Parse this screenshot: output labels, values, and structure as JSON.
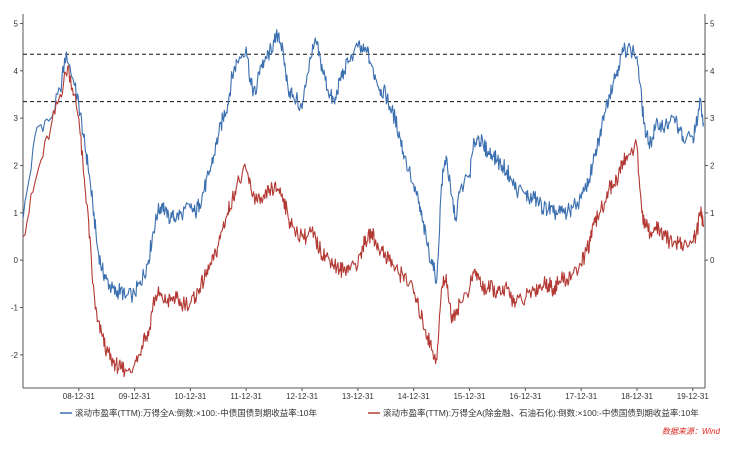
{
  "chart_data": {
    "type": "line",
    "title": "",
    "xlabel": "",
    "ylabel": "",
    "x_tick_labels": [
      "08-12-31",
      "09-12-31",
      "10-12-31",
      "11-12-31",
      "12-12-31",
      "13-12-31",
      "14-12-31",
      "15-12-31",
      "16-12-31",
      "17-12-31",
      "18-12-31",
      "19-12-31"
    ],
    "ylim": [
      -2.7,
      5.2
    ],
    "y_ticks": [
      -2,
      -1,
      0,
      1,
      2,
      3,
      4,
      5
    ],
    "y_ticks_right": [
      0,
      1,
      2,
      3,
      4,
      5
    ],
    "grid": false,
    "legend_position": "bottom",
    "reference_lines": [
      4.35,
      3.35
    ],
    "series": [
      {
        "name": "滚动市盈率(TTM):万得全A:倒数:×100:-中债国债到期收益率:10年",
        "color": "#3b6fb0",
        "points": [
          [
            "2008-01-02",
            0.9
          ],
          [
            "2008-04-01",
            2.8
          ],
          [
            "2008-07-01",
            3.0
          ],
          [
            "2008-09-01",
            3.6
          ],
          [
            "2008-10-10",
            4.4
          ],
          [
            "2008-12-01",
            3.7
          ],
          [
            "2008-12-31",
            3.3
          ],
          [
            "2009-02-01",
            2.6
          ],
          [
            "2009-03-01",
            2.0
          ],
          [
            "2009-04-01",
            1.2
          ],
          [
            "2009-05-01",
            0.3
          ],
          [
            "2009-06-01",
            -0.2
          ],
          [
            "2009-07-01",
            -0.4
          ],
          [
            "2009-08-01",
            -0.6
          ],
          [
            "2009-09-01",
            -0.7
          ],
          [
            "2009-10-01",
            -0.6
          ],
          [
            "2009-11-01",
            -0.8
          ],
          [
            "2009-12-31",
            -0.7
          ],
          [
            "2010-02-01",
            -0.5
          ],
          [
            "2010-03-01",
            -0.3
          ],
          [
            "2010-04-01",
            0.0
          ],
          [
            "2010-05-01",
            0.6
          ],
          [
            "2010-06-01",
            1.0
          ],
          [
            "2010-07-01",
            1.2
          ],
          [
            "2010-08-01",
            0.9
          ],
          [
            "2010-09-01",
            0.9
          ],
          [
            "2010-10-01",
            0.9
          ],
          [
            "2010-11-01",
            1.0
          ],
          [
            "2010-12-31",
            1.1
          ],
          [
            "2011-02-01",
            1.0
          ],
          [
            "2011-03-01",
            1.2
          ],
          [
            "2011-04-01",
            1.5
          ],
          [
            "2011-05-01",
            1.8
          ],
          [
            "2011-06-01",
            2.2
          ],
          [
            "2011-07-01",
            2.6
          ],
          [
            "2011-08-01",
            3.0
          ],
          [
            "2011-09-01",
            3.3
          ],
          [
            "2011-10-01",
            3.9
          ],
          [
            "2011-11-01",
            4.2
          ],
          [
            "2011-12-31",
            4.5
          ],
          [
            "2012-02-01",
            3.7
          ],
          [
            "2012-03-01",
            3.5
          ],
          [
            "2012-04-01",
            4.1
          ],
          [
            "2012-05-01",
            4.2
          ],
          [
            "2012-06-01",
            4.4
          ],
          [
            "2012-07-01",
            4.6
          ],
          [
            "2012-08-01",
            4.8
          ],
          [
            "2012-09-01",
            4.3
          ],
          [
            "2012-10-01",
            3.6
          ],
          [
            "2012-11-01",
            3.5
          ],
          [
            "2012-12-31",
            3.2
          ],
          [
            "2013-02-01",
            3.9
          ],
          [
            "2013-03-01",
            4.3
          ],
          [
            "2013-04-01",
            4.6
          ],
          [
            "2013-05-01",
            4.2
          ],
          [
            "2013-06-01",
            3.8
          ],
          [
            "2013-07-01",
            3.5
          ],
          [
            "2013-08-01",
            3.3
          ],
          [
            "2013-09-01",
            3.8
          ],
          [
            "2013-10-01",
            4.0
          ],
          [
            "2013-11-01",
            4.2
          ],
          [
            "2013-12-31",
            4.5
          ],
          [
            "2014-02-01",
            4.4
          ],
          [
            "2014-03-01",
            4.4
          ],
          [
            "2014-04-01",
            4.1
          ],
          [
            "2014-05-01",
            3.8
          ],
          [
            "2014-06-01",
            3.6
          ],
          [
            "2014-07-01",
            3.5
          ],
          [
            "2014-08-01",
            3.2
          ],
          [
            "2014-09-01",
            3.0
          ],
          [
            "2014-10-01",
            2.6
          ],
          [
            "2014-11-01",
            2.2
          ],
          [
            "2014-12-31",
            1.6
          ],
          [
            "2015-02-01",
            1.2
          ],
          [
            "2015-03-01",
            0.8
          ],
          [
            "2015-04-01",
            0.3
          ],
          [
            "2015-05-01",
            -0.1
          ],
          [
            "2015-06-01",
            -0.4
          ],
          [
            "2015-07-01",
            1.6
          ],
          [
            "2015-08-01",
            2.2
          ],
          [
            "2015-09-01",
            1.4
          ],
          [
            "2015-10-01",
            0.9
          ],
          [
            "2015-11-01",
            1.5
          ],
          [
            "2015-12-31",
            1.8
          ],
          [
            "2016-02-01",
            2.5
          ],
          [
            "2016-03-01",
            2.6
          ],
          [
            "2016-04-01",
            2.4
          ],
          [
            "2016-05-01",
            2.3
          ],
          [
            "2016-06-01",
            2.2
          ],
          [
            "2016-07-01",
            2.1
          ],
          [
            "2016-08-01",
            2.0
          ],
          [
            "2016-09-01",
            1.9
          ],
          [
            "2016-10-01",
            1.7
          ],
          [
            "2016-11-01",
            1.5
          ],
          [
            "2016-12-31",
            1.4
          ],
          [
            "2017-02-01",
            1.3
          ],
          [
            "2017-03-01",
            1.3
          ],
          [
            "2017-04-01",
            1.2
          ],
          [
            "2017-05-01",
            1.1
          ],
          [
            "2017-06-01",
            1.1
          ],
          [
            "2017-07-01",
            1.0
          ],
          [
            "2017-08-01",
            1.0
          ],
          [
            "2017-09-01",
            1.0
          ],
          [
            "2017-10-01",
            1.0
          ],
          [
            "2017-11-01",
            1.1
          ],
          [
            "2017-12-31",
            1.3
          ],
          [
            "2018-02-01",
            1.5
          ],
          [
            "2018-03-01",
            1.8
          ],
          [
            "2018-04-01",
            2.2
          ],
          [
            "2018-05-01",
            2.6
          ],
          [
            "2018-06-01",
            3.1
          ],
          [
            "2018-07-01",
            3.5
          ],
          [
            "2018-08-01",
            3.8
          ],
          [
            "2018-09-01",
            4.1
          ],
          [
            "2018-10-01",
            4.4
          ],
          [
            "2018-11-01",
            4.5
          ],
          [
            "2018-12-31",
            4.3
          ],
          [
            "2019-02-01",
            3.3
          ],
          [
            "2019-03-01",
            2.6
          ],
          [
            "2019-04-01",
            2.5
          ],
          [
            "2019-05-01",
            2.8
          ],
          [
            "2019-06-01",
            2.9
          ],
          [
            "2019-07-01",
            2.8
          ],
          [
            "2019-08-01",
            2.9
          ],
          [
            "2019-09-01",
            3.0
          ],
          [
            "2019-10-01",
            2.8
          ],
          [
            "2019-11-01",
            2.5
          ],
          [
            "2019-12-31",
            2.6
          ],
          [
            "2020-01-20",
            2.8
          ],
          [
            "2020-02-20",
            3.4
          ],
          [
            "2020-03-10",
            2.9
          ]
        ]
      },
      {
        "name": "滚动市盈率(TTM):万得全A(除金融、石油石化):倒数:×100:-中债国债到期收益率:10年",
        "color": "#b33a34",
        "points": [
          [
            "2008-01-02",
            0.5
          ],
          [
            "2008-04-01",
            1.8
          ],
          [
            "2008-07-01",
            2.8
          ],
          [
            "2008-09-01",
            3.5
          ],
          [
            "2008-10-20",
            4.1
          ],
          [
            "2008-12-01",
            3.5
          ],
          [
            "2008-12-31",
            3.0
          ],
          [
            "2009-02-01",
            1.8
          ],
          [
            "2009-03-01",
            1.0
          ],
          [
            "2009-04-01",
            -0.5
          ],
          [
            "2009-05-01",
            -1.3
          ],
          [
            "2009-06-01",
            -1.6
          ],
          [
            "2009-07-01",
            -1.9
          ],
          [
            "2009-08-01",
            -2.1
          ],
          [
            "2009-09-01",
            -2.2
          ],
          [
            "2009-10-01",
            -2.3
          ],
          [
            "2009-11-01",
            -2.3
          ],
          [
            "2009-12-31",
            -2.2
          ],
          [
            "2010-02-01",
            -2.0
          ],
          [
            "2010-03-01",
            -1.6
          ],
          [
            "2010-04-01",
            -1.6
          ],
          [
            "2010-05-01",
            -0.9
          ],
          [
            "2010-06-01",
            -0.7
          ],
          [
            "2010-07-01",
            -0.8
          ],
          [
            "2010-08-01",
            -0.9
          ],
          [
            "2010-09-01",
            -0.8
          ],
          [
            "2010-10-01",
            -0.8
          ],
          [
            "2010-11-01",
            -0.9
          ],
          [
            "2010-12-31",
            -0.9
          ],
          [
            "2011-02-01",
            -0.8
          ],
          [
            "2011-03-01",
            -0.6
          ],
          [
            "2011-04-01",
            -0.4
          ],
          [
            "2011-05-01",
            -0.2
          ],
          [
            "2011-06-01",
            0.0
          ],
          [
            "2011-07-01",
            0.3
          ],
          [
            "2011-08-01",
            0.7
          ],
          [
            "2011-09-01",
            1.0
          ],
          [
            "2011-10-01",
            1.3
          ],
          [
            "2011-11-01",
            1.6
          ],
          [
            "2011-12-31",
            1.9
          ],
          [
            "2012-02-01",
            1.5
          ],
          [
            "2012-03-01",
            1.3
          ],
          [
            "2012-04-01",
            1.2
          ],
          [
            "2012-05-01",
            1.3
          ],
          [
            "2012-06-01",
            1.5
          ],
          [
            "2012-07-01",
            1.5
          ],
          [
            "2012-08-01",
            1.5
          ],
          [
            "2012-09-01",
            1.3
          ],
          [
            "2012-10-01",
            0.9
          ],
          [
            "2012-11-01",
            0.7
          ],
          [
            "2012-12-31",
            0.5
          ],
          [
            "2013-02-01",
            0.5
          ],
          [
            "2013-03-01",
            0.6
          ],
          [
            "2013-04-01",
            0.4
          ],
          [
            "2013-05-01",
            0.2
          ],
          [
            "2013-06-01",
            0.1
          ],
          [
            "2013-07-01",
            0.0
          ],
          [
            "2013-08-01",
            -0.1
          ],
          [
            "2013-09-01",
            -0.2
          ],
          [
            "2013-10-01",
            -0.2
          ],
          [
            "2013-11-01",
            -0.1
          ],
          [
            "2013-12-31",
            -0.1
          ],
          [
            "2014-02-01",
            0.3
          ],
          [
            "2014-03-01",
            0.4
          ],
          [
            "2014-04-01",
            0.6
          ],
          [
            "2014-05-01",
            0.3
          ],
          [
            "2014-06-01",
            0.2
          ],
          [
            "2014-07-01",
            0.1
          ],
          [
            "2014-08-01",
            0.0
          ],
          [
            "2014-09-01",
            -0.2
          ],
          [
            "2014-10-01",
            -0.3
          ],
          [
            "2014-11-01",
            -0.3
          ],
          [
            "2014-12-31",
            -0.7
          ],
          [
            "2015-02-01",
            -1.0
          ],
          [
            "2015-03-01",
            -1.3
          ],
          [
            "2015-04-01",
            -1.6
          ],
          [
            "2015-05-01",
            -1.9
          ],
          [
            "2015-06-01",
            -2.1
          ],
          [
            "2015-07-01",
            -0.6
          ],
          [
            "2015-08-01",
            -0.3
          ],
          [
            "2015-09-01",
            -1.2
          ],
          [
            "2015-10-01",
            -1.1
          ],
          [
            "2015-11-01",
            -0.9
          ],
          [
            "2015-12-31",
            -0.6
          ],
          [
            "2016-02-01",
            -0.2
          ],
          [
            "2016-03-01",
            -0.4
          ],
          [
            "2016-04-01",
            -0.6
          ],
          [
            "2016-05-01",
            -0.6
          ],
          [
            "2016-06-01",
            -0.6
          ],
          [
            "2016-07-01",
            -0.7
          ],
          [
            "2016-08-01",
            -0.7
          ],
          [
            "2016-09-01",
            -0.6
          ],
          [
            "2016-10-01",
            -0.8
          ],
          [
            "2016-11-01",
            -0.9
          ],
          [
            "2016-12-31",
            -0.8
          ],
          [
            "2017-02-01",
            -0.7
          ],
          [
            "2017-03-01",
            -0.6
          ],
          [
            "2017-04-01",
            -0.6
          ],
          [
            "2017-05-01",
            -0.5
          ],
          [
            "2017-06-01",
            -0.5
          ],
          [
            "2017-07-01",
            -0.6
          ],
          [
            "2017-08-01",
            -0.5
          ],
          [
            "2017-09-01",
            -0.4
          ],
          [
            "2017-10-01",
            -0.4
          ],
          [
            "2017-11-01",
            -0.3
          ],
          [
            "2017-12-31",
            -0.1
          ],
          [
            "2018-02-01",
            0.2
          ],
          [
            "2018-03-01",
            0.4
          ],
          [
            "2018-04-01",
            0.8
          ],
          [
            "2018-05-01",
            1.0
          ],
          [
            "2018-06-01",
            1.2
          ],
          [
            "2018-07-01",
            1.5
          ],
          [
            "2018-08-01",
            1.6
          ],
          [
            "2018-09-01",
            1.8
          ],
          [
            "2018-10-01",
            2.1
          ],
          [
            "2018-11-01",
            2.2
          ],
          [
            "2018-12-31",
            2.4
          ],
          [
            "2019-02-01",
            1.0
          ],
          [
            "2019-03-01",
            0.7
          ],
          [
            "2019-04-01",
            0.6
          ],
          [
            "2019-05-01",
            0.7
          ],
          [
            "2019-06-01",
            0.6
          ],
          [
            "2019-07-01",
            0.5
          ],
          [
            "2019-08-01",
            0.4
          ],
          [
            "2019-09-01",
            0.4
          ],
          [
            "2019-10-01",
            0.4
          ],
          [
            "2019-11-01",
            0.3
          ],
          [
            "2019-12-31",
            0.4
          ],
          [
            "2020-01-20",
            0.5
          ],
          [
            "2020-02-20",
            1.0
          ],
          [
            "2020-03-10",
            0.7
          ]
        ]
      }
    ],
    "source": "数据来源：Wind"
  }
}
